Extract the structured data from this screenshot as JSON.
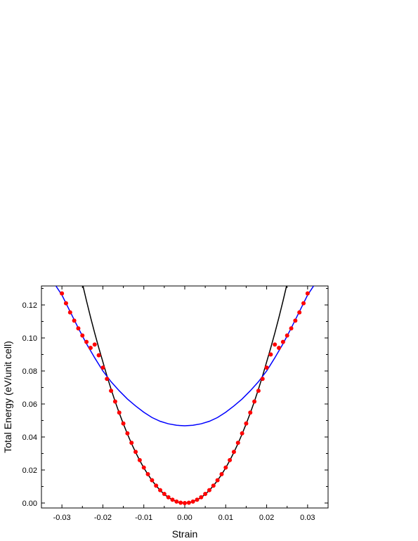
{
  "chart_data": {
    "type": "scatter",
    "title": "",
    "xlabel": "Strain",
    "ylabel": "Total Energy (eV/unit cell)",
    "xlim": [
      -0.035,
      0.035
    ],
    "ylim": [
      -0.003,
      0.1315
    ],
    "x_ticks": [
      -0.03,
      -0.02,
      -0.01,
      0.0,
      0.01,
      0.02,
      0.03
    ],
    "x_tick_labels": [
      "-0.03",
      "-0.02",
      "-0.01",
      "0.00",
      "0.01",
      "0.02",
      "0.03"
    ],
    "y_ticks": [
      0.0,
      0.02,
      0.04,
      0.06,
      0.08,
      0.1,
      0.12
    ],
    "y_tick_labels": [
      "0.00",
      "0.02",
      "0.04",
      "0.06",
      "0.08",
      "0.10",
      "0.12"
    ],
    "grid": false,
    "legend": "none",
    "series": [
      {
        "kind": "scatter",
        "color": "#ff0000",
        "x": [
          -0.03,
          -0.029,
          -0.028,
          -0.027,
          -0.026,
          -0.025,
          -0.024,
          -0.023,
          -0.022,
          -0.021,
          -0.02,
          -0.019,
          -0.018,
          -0.017,
          -0.016,
          -0.015,
          -0.014,
          -0.013,
          -0.012,
          -0.011,
          -0.01,
          -0.009,
          -0.008,
          -0.007,
          -0.006,
          -0.005,
          -0.004,
          -0.003,
          -0.002,
          -0.001,
          0.0,
          0.001,
          0.002,
          0.003,
          0.004,
          0.005,
          0.006,
          0.007,
          0.008,
          0.009,
          0.01,
          0.011,
          0.012,
          0.013,
          0.014,
          0.015,
          0.016,
          0.017,
          0.018,
          0.019,
          0.02,
          0.021,
          0.022,
          0.023,
          0.024,
          0.025,
          0.026,
          0.027,
          0.028,
          0.029,
          0.03
        ],
        "y": [
          0.127,
          0.121,
          0.1155,
          0.1105,
          0.1058,
          0.1015,
          0.0976,
          0.094,
          0.096,
          0.0895,
          0.082,
          0.0752,
          0.068,
          0.0615,
          0.0548,
          0.0482,
          0.0422,
          0.0365,
          0.031,
          0.026,
          0.0215,
          0.0175,
          0.0138,
          0.0105,
          0.0078,
          0.0055,
          0.0035,
          0.002,
          0.0009,
          0.0002,
          0.0,
          0.0002,
          0.0009,
          0.002,
          0.0035,
          0.0055,
          0.0078,
          0.0105,
          0.0138,
          0.0175,
          0.0215,
          0.026,
          0.031,
          0.0365,
          0.0422,
          0.0482,
          0.0548,
          0.0615,
          0.068,
          0.0752,
          0.082,
          0.09,
          0.096,
          0.094,
          0.0976,
          0.1015,
          0.1058,
          0.1105,
          0.1155,
          0.121,
          0.127
        ]
      },
      {
        "kind": "line",
        "color": "#000000",
        "x": [
          -0.025,
          -0.024,
          -0.023,
          -0.022,
          -0.021,
          -0.02,
          -0.019,
          -0.018,
          -0.017,
          -0.016,
          -0.015,
          -0.014,
          -0.013,
          -0.012,
          -0.011,
          -0.01,
          -0.009,
          -0.008,
          -0.007,
          -0.006,
          -0.005,
          -0.004,
          -0.003,
          -0.002,
          -0.001,
          0.0,
          0.001,
          0.002,
          0.003,
          0.004,
          0.005,
          0.006,
          0.007,
          0.008,
          0.009,
          0.01,
          0.011,
          0.012,
          0.013,
          0.014,
          0.015,
          0.016,
          0.017,
          0.018,
          0.019,
          0.02,
          0.021,
          0.022,
          0.023,
          0.024,
          0.025
        ],
        "y": [
          0.133,
          0.1225,
          0.1125,
          0.103,
          0.094,
          0.0855,
          0.077,
          0.069,
          0.0615,
          0.0545,
          0.048,
          0.0418,
          0.036,
          0.0307,
          0.0258,
          0.0213,
          0.0173,
          0.0137,
          0.0105,
          0.0077,
          0.0053,
          0.0034,
          0.0019,
          0.0009,
          0.0002,
          0.0,
          0.0002,
          0.0009,
          0.0019,
          0.0034,
          0.0053,
          0.0077,
          0.0105,
          0.0137,
          0.0173,
          0.0213,
          0.0258,
          0.0307,
          0.036,
          0.0418,
          0.048,
          0.0545,
          0.0615,
          0.069,
          0.077,
          0.0855,
          0.094,
          0.103,
          0.1125,
          0.1225,
          0.133
        ]
      },
      {
        "kind": "line",
        "color": "#0000ff",
        "x": [
          -0.032,
          -0.03,
          -0.028,
          -0.026,
          -0.024,
          -0.022,
          -0.02,
          -0.018,
          -0.016,
          -0.014,
          -0.012,
          -0.01,
          -0.008,
          -0.006,
          -0.004,
          -0.002,
          0.0,
          0.002,
          0.004,
          0.006,
          0.008,
          0.01,
          0.012,
          0.014,
          0.016,
          0.018,
          0.02,
          0.022,
          0.024,
          0.026,
          0.028,
          0.03,
          0.032
        ],
        "y": [
          0.1335,
          0.126,
          0.116,
          0.106,
          0.0965,
          0.088,
          0.08,
          0.0735,
          0.068,
          0.063,
          0.0588,
          0.055,
          0.0518,
          0.0495,
          0.048,
          0.0471,
          0.0468,
          0.0471,
          0.048,
          0.0495,
          0.0518,
          0.055,
          0.0588,
          0.063,
          0.068,
          0.0735,
          0.08,
          0.088,
          0.0965,
          0.106,
          0.116,
          0.126,
          0.1335
        ]
      }
    ]
  }
}
